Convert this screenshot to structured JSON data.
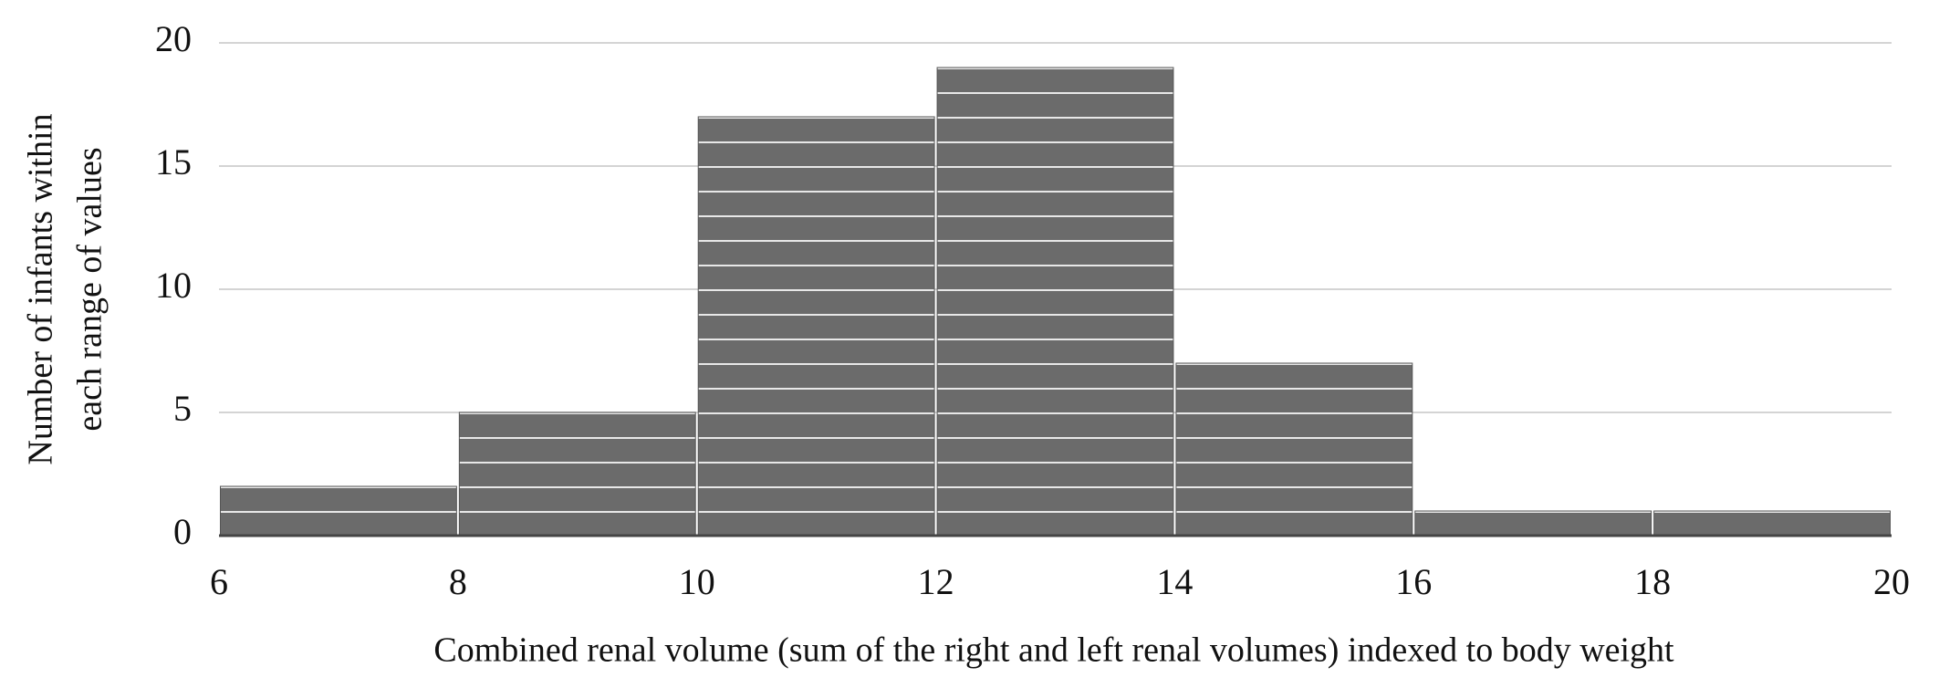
{
  "chart_data": {
    "type": "histogram",
    "x_label": "Combined renal volume (sum of the right and left renal volumes) indexed to body weight",
    "y_label": [
      "Number of infants within",
      "each range of values"
    ],
    "bins": [
      6,
      8,
      10,
      12,
      14,
      16,
      18,
      20
    ],
    "values": [
      2,
      5,
      17,
      19,
      7,
      1,
      1
    ],
    "color": "#6b6b6b",
    "xlim": [
      6,
      20
    ],
    "xticks": [
      6,
      8,
      10,
      12,
      14,
      16,
      18,
      20
    ],
    "ylim": [
      0,
      20
    ],
    "yticks": [
      0,
      5,
      10,
      15,
      20
    ],
    "grid": true
  }
}
